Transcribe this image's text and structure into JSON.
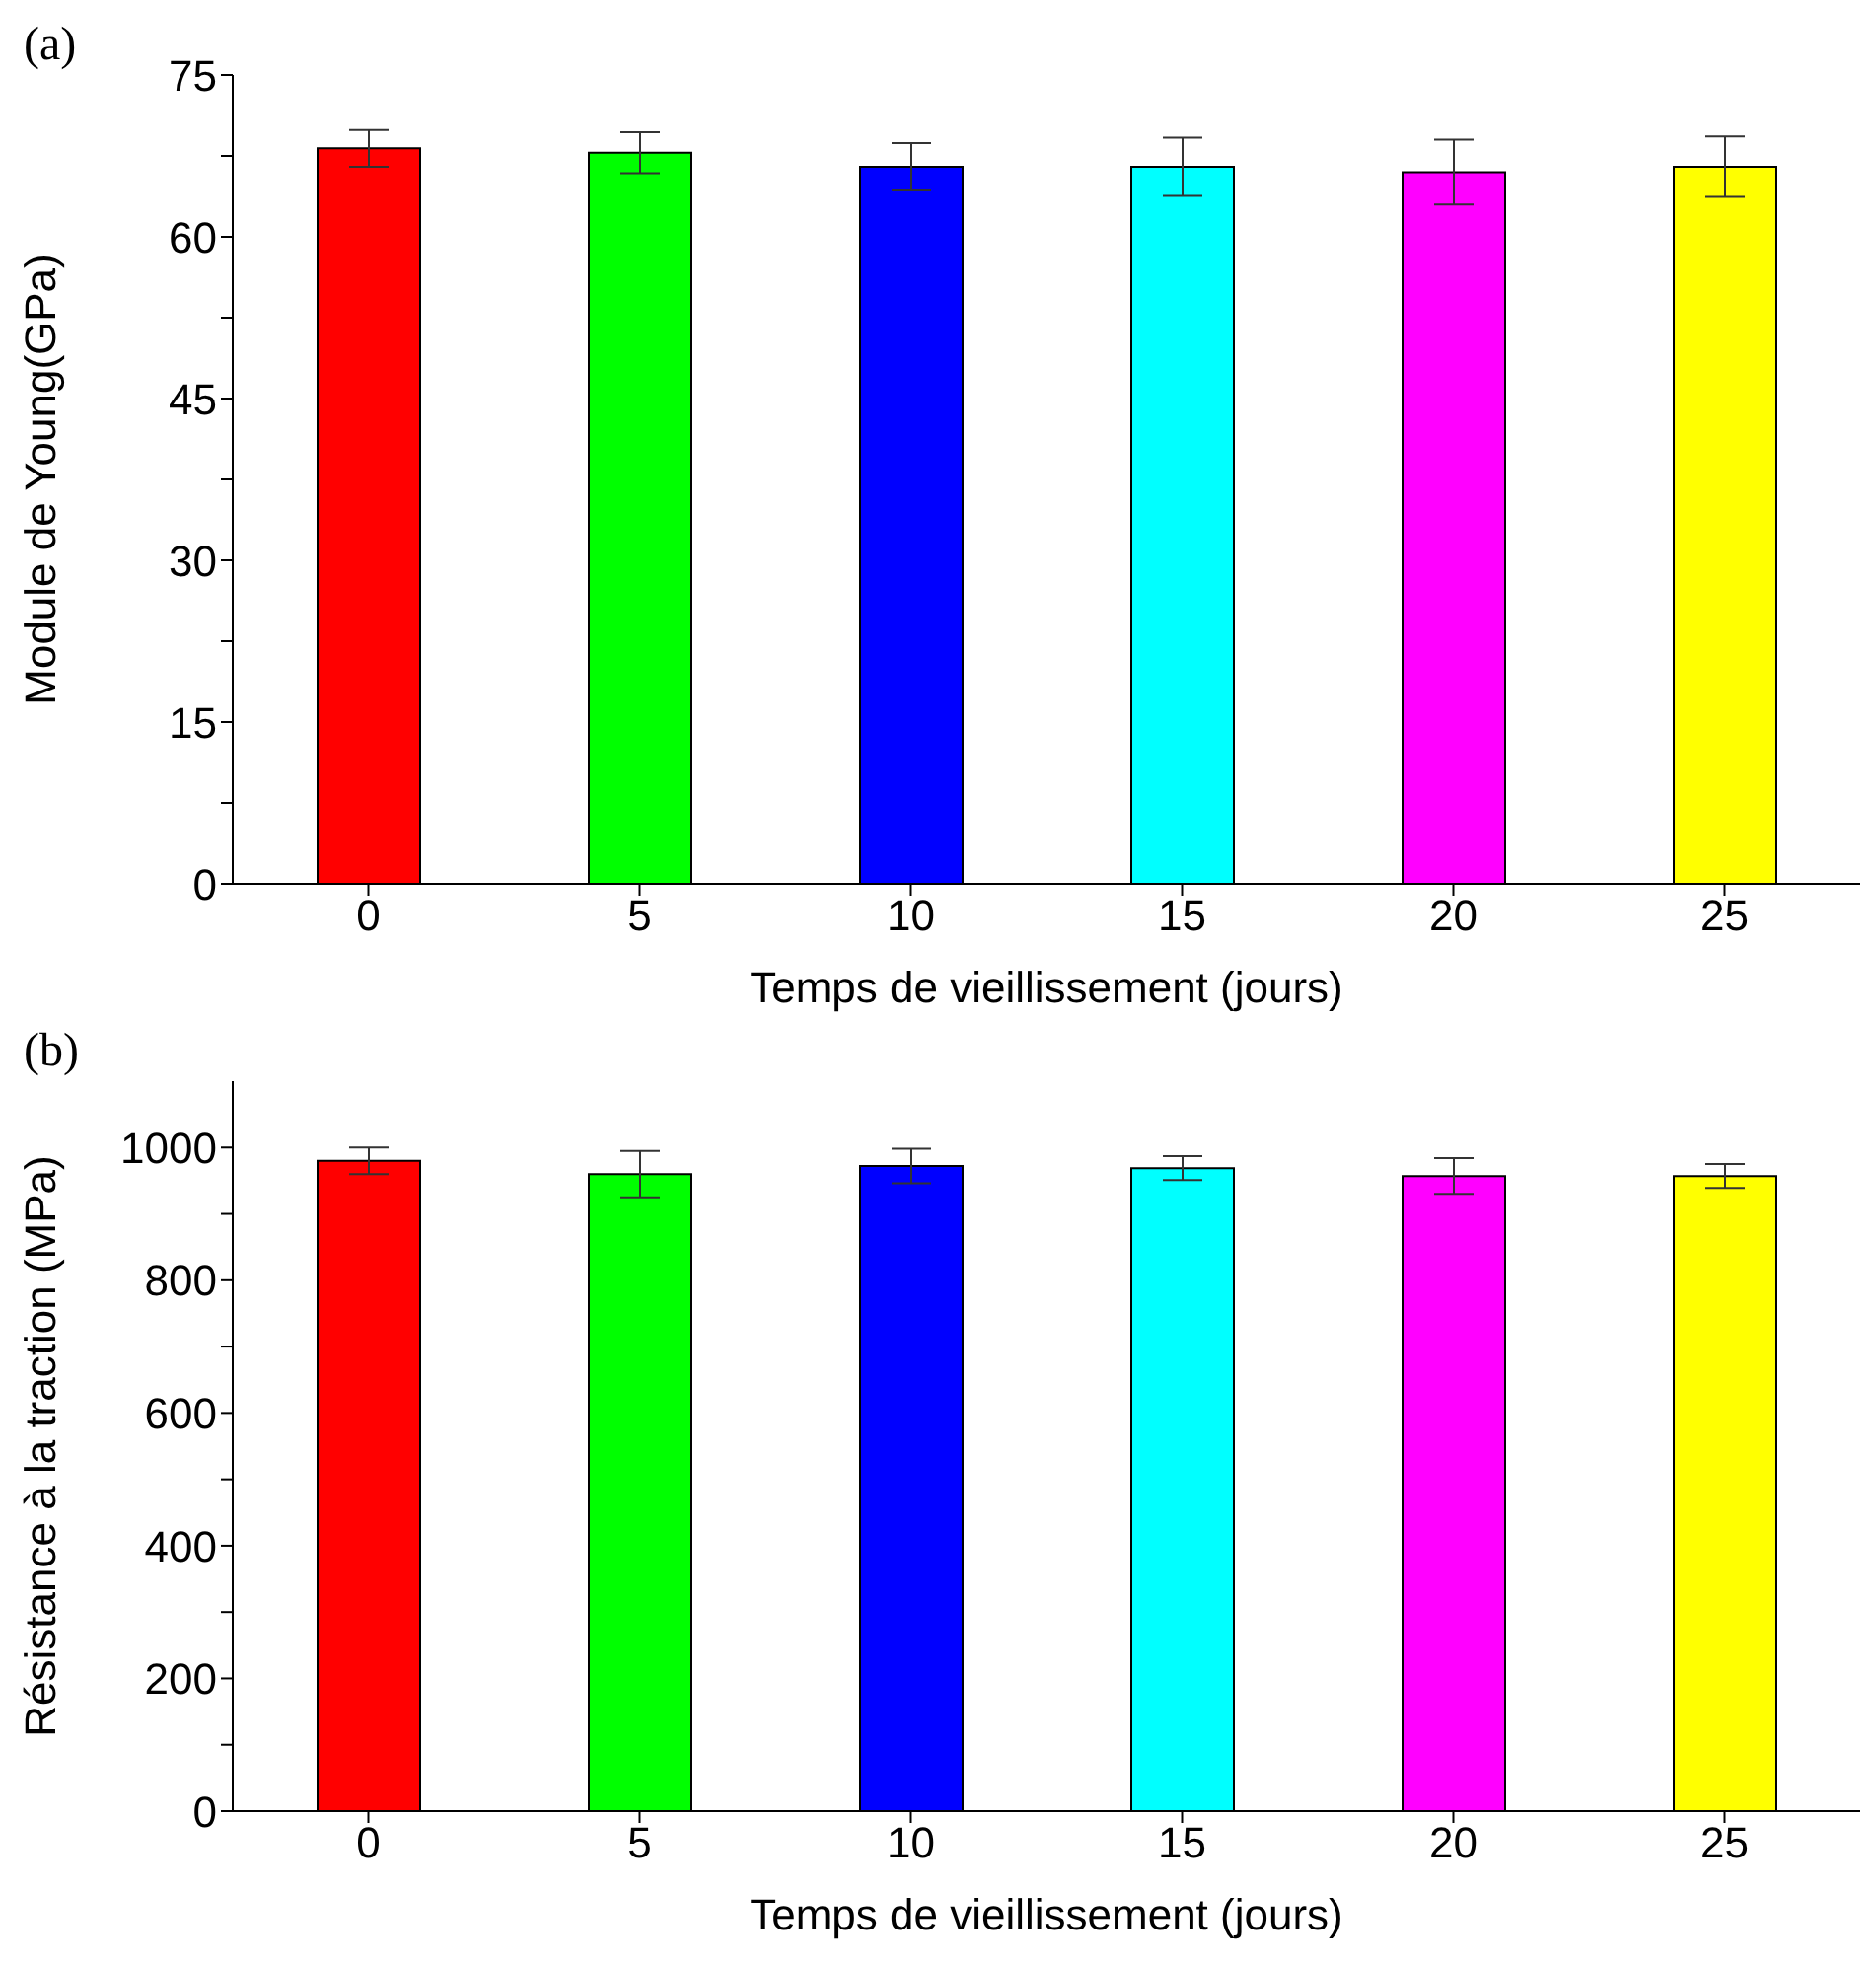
{
  "chart_data": [
    {
      "type": "bar",
      "title": "(a)",
      "xlabel": "Temps de vieillissement (jours)",
      "ylabel": "Module de Young(GPa)",
      "categories": [
        "0",
        "5",
        "10",
        "15",
        "20",
        "25"
      ],
      "values": [
        68.2,
        67.8,
        66.5,
        66.5,
        66.0,
        66.5
      ],
      "errors": [
        1.7,
        1.9,
        2.2,
        2.7,
        3.0,
        2.8
      ],
      "colors": [
        "#ff0000",
        "#00ff00",
        "#0000ff",
        "#00ffff",
        "#ff00ff",
        "#ffff00"
      ],
      "ylim": [
        0,
        75
      ],
      "yticks": [
        0,
        {
          "value": 7.5,
          "label": null
        },
        15,
        {
          "value": 22.5,
          "label": null
        },
        30,
        {
          "value": 37.5,
          "label": null
        },
        45,
        {
          "value": 52.5,
          "label": null
        },
        60,
        {
          "value": 67.5,
          "label": null
        },
        75
      ],
      "grid": false
    },
    {
      "type": "bar",
      "title": "(b)",
      "xlabel": "Temps de vieillissement (jours)",
      "ylabel": "Résistance à la traction (MPa)",
      "categories": [
        "0",
        "5",
        "10",
        "15",
        "20",
        "25"
      ],
      "values": [
        980,
        960,
        972,
        969,
        957,
        957
      ],
      "errors": [
        20,
        35,
        26,
        18,
        27,
        18
      ],
      "colors": [
        "#ff0000",
        "#00ff00",
        "#0000ff",
        "#00ffff",
        "#ff00ff",
        "#ffff00"
      ],
      "ylim": [
        0,
        1100
      ],
      "yticks": [
        0,
        {
          "value": 100,
          "label": null
        },
        200,
        {
          "value": 300,
          "label": null
        },
        400,
        {
          "value": 500,
          "label": null
        },
        600,
        {
          "value": 700,
          "label": null
        },
        800,
        {
          "value": 900,
          "label": null
        },
        1000
      ],
      "grid": false
    }
  ]
}
